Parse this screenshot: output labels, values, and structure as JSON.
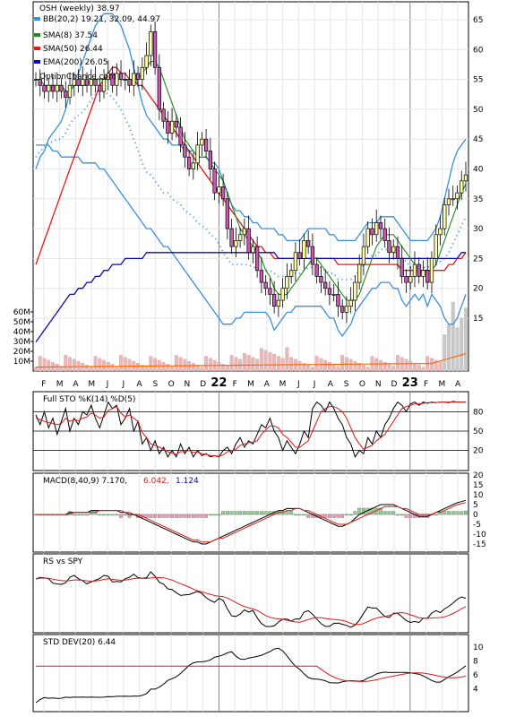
{
  "colors": {
    "bb": "#3a8fdc",
    "sma8": "#1e8a1e",
    "sma50": "#e01818",
    "ema200": "#0a0ab4",
    "volume": "#f0b4b4",
    "volume_ma": "#ff6a00",
    "candle_up": "#ffffa0",
    "candle_down": "#c85ab4",
    "grid": "#d0d0d0",
    "band_grid": "#000000"
  },
  "chart_data": [
    {
      "type": "candlestick",
      "panel": "price",
      "legend": [
        {
          "label": "OSH (weekly) 38.97",
          "color": "#ffffff"
        },
        {
          "label": "BB(20,2) 19.21, 32.09, 44.97",
          "color": "#3a8fdc"
        },
        {
          "label": "SMA(8) 37.54",
          "color": "#1e8a1e"
        },
        {
          "label": "SMA(50) 26.44",
          "color": "#e01818"
        },
        {
          "label": "EMA(200) 26.05",
          "color": "#0a0ab4"
        }
      ],
      "watermark": "OptionChance.com",
      "x_labels": [
        "F",
        "M",
        "A",
        "M",
        "J",
        "J",
        "A",
        "S",
        "O",
        "N",
        "D",
        "22",
        "F",
        "M",
        "A",
        "M",
        "J",
        "J",
        "A",
        "S",
        "O",
        "N",
        "D",
        "23",
        "F",
        "M",
        "A"
      ],
      "y_ticks": [
        15,
        20,
        25,
        30,
        35,
        40,
        45,
        50,
        55,
        60,
        65
      ],
      "ylim": [
        8,
        67
      ],
      "volume_ticks": [
        "60M",
        "50M",
        "40M",
        "30M",
        "20M",
        "10M"
      ],
      "close": [
        55,
        54,
        53,
        54,
        53,
        54,
        53,
        52,
        54,
        55,
        54,
        55,
        54,
        55,
        54,
        53,
        55,
        56,
        54,
        56,
        55,
        55,
        54,
        56,
        55,
        57,
        59,
        63,
        57,
        50,
        48,
        46,
        48,
        47,
        44,
        42,
        40,
        41,
        44,
        45,
        43,
        40,
        36,
        37,
        35,
        30,
        27,
        28,
        29,
        30,
        26,
        27,
        23,
        21,
        20,
        19,
        17,
        18,
        20,
        22,
        23,
        26,
        25,
        28,
        27,
        24,
        22,
        21,
        20,
        19,
        19,
        17,
        16,
        17,
        18,
        21,
        24,
        27,
        30,
        29,
        31,
        30,
        28,
        26,
        27,
        25,
        22,
        21,
        22,
        24,
        22,
        23,
        21,
        25,
        29,
        30,
        34,
        35,
        35,
        36,
        38,
        39
      ],
      "bb_upper": [
        40,
        42,
        43,
        45,
        46,
        47,
        48,
        50,
        53,
        55,
        56,
        58,
        60,
        62,
        64,
        65,
        66,
        66,
        66,
        65,
        64,
        62,
        60,
        57,
        54,
        51,
        49,
        48,
        47,
        46,
        45,
        45,
        44,
        44,
        44,
        43,
        43,
        43,
        42,
        42,
        42,
        41,
        41,
        40,
        38,
        36,
        34,
        33,
        33,
        32,
        32,
        31,
        31,
        30,
        30,
        30,
        30,
        29,
        29,
        28,
        28,
        28,
        28,
        29,
        30,
        30,
        30,
        30,
        30,
        29,
        29,
        28,
        28,
        28,
        28,
        28,
        29,
        30,
        31,
        31,
        31,
        32,
        32,
        32,
        32,
        31,
        30,
        29,
        28,
        28,
        28,
        28,
        28,
        29,
        30,
        32,
        35,
        38,
        41,
        43,
        44,
        45
      ],
      "bb_lower": [
        44,
        44,
        44,
        44,
        43,
        43,
        42,
        42,
        42,
        42,
        42,
        41,
        41,
        41,
        41,
        40,
        40,
        39,
        38,
        37,
        36,
        35,
        34,
        33,
        32,
        31,
        30,
        30,
        29,
        28,
        27,
        27,
        26,
        25,
        24,
        23,
        22,
        21,
        20,
        19,
        18,
        17,
        16,
        15,
        14,
        14,
        14,
        15,
        15,
        16,
        16,
        16,
        16,
        16,
        16,
        16,
        15,
        15,
        15,
        16,
        16,
        17,
        17,
        17,
        17,
        17,
        17,
        17,
        16,
        16,
        16,
        15,
        15,
        15,
        15,
        16,
        17,
        18,
        19,
        20,
        20,
        21,
        21,
        21,
        20,
        20,
        20,
        20,
        19,
        19,
        19,
        19,
        19,
        19,
        18,
        17,
        15,
        14,
        14,
        15,
        17,
        19
      ],
      "sma8": [
        55,
        55,
        54,
        54,
        54,
        54,
        54,
        53,
        53,
        54,
        54,
        54,
        54,
        55,
        55,
        55,
        55,
        55,
        55,
        55,
        55,
        55,
        55,
        55,
        55,
        56,
        57,
        58,
        58,
        57,
        55,
        53,
        51,
        49,
        47,
        45,
        44,
        43,
        42,
        42,
        42,
        41,
        40,
        39,
        38,
        36,
        34,
        32,
        30,
        29,
        28,
        27,
        26,
        25,
        23,
        22,
        20,
        19,
        19,
        19,
        20,
        21,
        22,
        23,
        24,
        25,
        25,
        24,
        23,
        22,
        21,
        20,
        19,
        18,
        18,
        18,
        19,
        21,
        23,
        25,
        27,
        28,
        29,
        29,
        29,
        28,
        27,
        26,
        25,
        24,
        23,
        23,
        23,
        23,
        24,
        26,
        28,
        30,
        32,
        34,
        36,
        37.5
      ],
      "sma50": [
        24,
        26,
        28,
        30,
        32,
        34,
        36,
        38,
        40,
        42,
        44,
        46,
        48,
        50,
        52,
        54,
        55,
        56,
        57,
        57,
        56,
        56,
        55,
        55,
        54,
        54,
        53,
        52,
        51,
        50,
        49,
        48,
        47,
        46,
        45,
        44,
        43,
        42,
        41,
        40,
        39,
        38,
        37,
        36,
        35,
        34,
        33,
        32,
        31,
        30,
        29,
        28,
        27,
        27,
        26,
        26,
        25,
        25,
        25,
        25,
        25,
        25,
        25,
        25,
        25,
        25,
        25,
        25,
        25,
        25,
        25,
        24,
        24,
        24,
        24,
        24,
        24,
        24,
        24,
        24,
        24,
        24,
        24,
        24,
        24,
        24,
        23,
        23,
        23,
        23,
        23,
        23,
        23,
        23,
        23,
        23,
        23,
        24,
        24,
        25,
        25,
        26
      ],
      "ema200": [
        11,
        12,
        13,
        14,
        15,
        16,
        17,
        18,
        19,
        19,
        20,
        20,
        21,
        21,
        22,
        22,
        23,
        23,
        24,
        24,
        24,
        25,
        25,
        25,
        25,
        25,
        26,
        26,
        26,
        26,
        26,
        26,
        26,
        26,
        26,
        26,
        26,
        26,
        26,
        26,
        26,
        26,
        26,
        26,
        26,
        26,
        26,
        26,
        26,
        26,
        26,
        26,
        26,
        26,
        26,
        26,
        26,
        25,
        25,
        25,
        25,
        25,
        25,
        25,
        25,
        25,
        25,
        25,
        25,
        25,
        25,
        25,
        25,
        25,
        25,
        25,
        25,
        25,
        25,
        25,
        25,
        25,
        25,
        25,
        25,
        25,
        25,
        25,
        25,
        25,
        25,
        25,
        25,
        25,
        25,
        25,
        25,
        25,
        25,
        25,
        26,
        26
      ]
    },
    {
      "type": "line",
      "panel": "stochastic",
      "title": "Full STO %K(14) %D(5)",
      "y_ticks": [
        20,
        50,
        80
      ],
      "k": [
        75,
        60,
        80,
        55,
        70,
        45,
        65,
        85,
        50,
        70,
        60,
        80,
        75,
        90,
        70,
        55,
        75,
        95,
        85,
        90,
        60,
        70,
        85,
        50,
        65,
        30,
        40,
        20,
        35,
        15,
        25,
        10,
        20,
        10,
        30,
        15,
        25,
        10,
        20,
        12,
        15,
        10,
        12,
        10,
        20,
        25,
        15,
        30,
        40,
        25,
        35,
        30,
        45,
        60,
        55,
        70,
        50,
        40,
        20,
        35,
        25,
        15,
        30,
        50,
        40,
        85,
        95,
        90,
        80,
        95,
        85,
        70,
        60,
        40,
        30,
        10,
        20,
        15,
        40,
        30,
        50,
        40,
        60,
        70,
        85,
        95,
        90,
        80,
        92,
        95,
        90,
        95,
        93,
        95,
        94,
        95,
        95,
        94,
        96,
        95,
        95,
        95
      ],
      "d": [
        70,
        68,
        65,
        63,
        62,
        60,
        62,
        70,
        65,
        68,
        66,
        70,
        72,
        78,
        75,
        70,
        72,
        82,
        85,
        88,
        78,
        72,
        75,
        70,
        65,
        48,
        40,
        30,
        28,
        25,
        22,
        18,
        16,
        14,
        18,
        18,
        20,
        17,
        17,
        15,
        14,
        12,
        12,
        11,
        13,
        18,
        19,
        22,
        28,
        30,
        32,
        33,
        35,
        45,
        52,
        58,
        58,
        55,
        45,
        40,
        33,
        25,
        25,
        30,
        35,
        50,
        65,
        80,
        85,
        88,
        88,
        85,
        80,
        70,
        55,
        40,
        30,
        22,
        25,
        28,
        35,
        40,
        45,
        55,
        65,
        75,
        85,
        88,
        90,
        92,
        92,
        93,
        94,
        94,
        94,
        95,
        95,
        95,
        95,
        95,
        95,
        95
      ]
    },
    {
      "type": "line",
      "panel": "macd",
      "title": "MACD(8,40,9) 7.170, 6.042, 1.124",
      "title_parts": [
        "MACD(8,40,9) 7.170,",
        "6.042,",
        "1.124"
      ],
      "y_ticks": [
        -15,
        -10,
        -5,
        0,
        5,
        10,
        15,
        20
      ],
      "macd": [
        0,
        0,
        0,
        0,
        0,
        0,
        0,
        0,
        1,
        1,
        1,
        1,
        1,
        2,
        2,
        2,
        2,
        2,
        2,
        2,
        1,
        1,
        0,
        0,
        -1,
        -2,
        -3,
        -4,
        -5,
        -6,
        -7,
        -8,
        -9,
        -10,
        -11,
        -12,
        -13,
        -14,
        -14,
        -15,
        -15,
        -14,
        -13,
        -12,
        -11,
        -10,
        -9,
        -8,
        -7,
        -6,
        -5,
        -4,
        -3,
        -2,
        -1,
        0,
        1,
        2,
        2,
        3,
        3,
        3,
        3,
        2,
        1,
        0,
        -1,
        -2,
        -3,
        -4,
        -5,
        -6,
        -6,
        -5,
        -4,
        -2,
        0,
        1,
        2,
        3,
        4,
        5,
        5,
        5,
        5,
        4,
        3,
        2,
        1,
        0,
        -1,
        -1,
        -1,
        0,
        1,
        2,
        3,
        4,
        5,
        6,
        6.5,
        7.2
      ],
      "signal": [
        0,
        0,
        0,
        0,
        0,
        0,
        0,
        0,
        0,
        1,
        1,
        1,
        1,
        1,
        1,
        2,
        2,
        2,
        2,
        2,
        2,
        1,
        1,
        0,
        0,
        -1,
        -2,
        -3,
        -4,
        -5,
        -6,
        -7,
        -8,
        -9,
        -10,
        -11,
        -12,
        -13,
        -13,
        -14,
        -14,
        -14,
        -13,
        -12,
        -12,
        -11,
        -10,
        -9,
        -8,
        -7,
        -6,
        -5,
        -4,
        -3,
        -2,
        -1,
        0,
        1,
        1,
        2,
        2,
        3,
        3,
        2,
        2,
        1,
        0,
        -1,
        -2,
        -3,
        -4,
        -5,
        -5,
        -5,
        -4,
        -3,
        -2,
        -1,
        0,
        1,
        2,
        3,
        4,
        4,
        4,
        4,
        3,
        3,
        2,
        1,
        0,
        0,
        0,
        0,
        1,
        1,
        2,
        3,
        4,
        5,
        5.5,
        6.0
      ],
      "histogram": [
        0,
        0,
        0,
        0,
        0,
        0,
        0,
        0,
        1,
        0,
        0,
        0,
        0,
        1,
        1,
        0,
        0,
        0,
        0,
        0,
        -1,
        0,
        -1,
        0,
        -1,
        -1,
        -1,
        -1,
        -1,
        -1,
        -1,
        -1,
        -1,
        -1,
        -1,
        -1,
        -1,
        -1,
        -1,
        -1,
        -1,
        0,
        0,
        0,
        1,
        1,
        1,
        1,
        1,
        1,
        1,
        1,
        1,
        1,
        1,
        1,
        1,
        1,
        1,
        1,
        1,
        0,
        0,
        0,
        -1,
        -1,
        -1,
        -1,
        -1,
        -1,
        -1,
        -1,
        -1,
        0,
        0,
        1,
        2,
        2,
        2,
        2,
        2,
        2,
        1,
        1,
        1,
        0,
        0,
        -1,
        -1,
        -1,
        -1,
        -1,
        -1,
        0,
        0,
        1,
        1,
        1,
        1,
        1,
        1,
        1.1
      ]
    },
    {
      "type": "line",
      "panel": "rs",
      "title": "RS vs SPY"
    },
    {
      "type": "line",
      "panel": "stddev",
      "title": "STD DEV(20) 6.44",
      "y_ticks": [
        4,
        6,
        8,
        10
      ]
    }
  ]
}
